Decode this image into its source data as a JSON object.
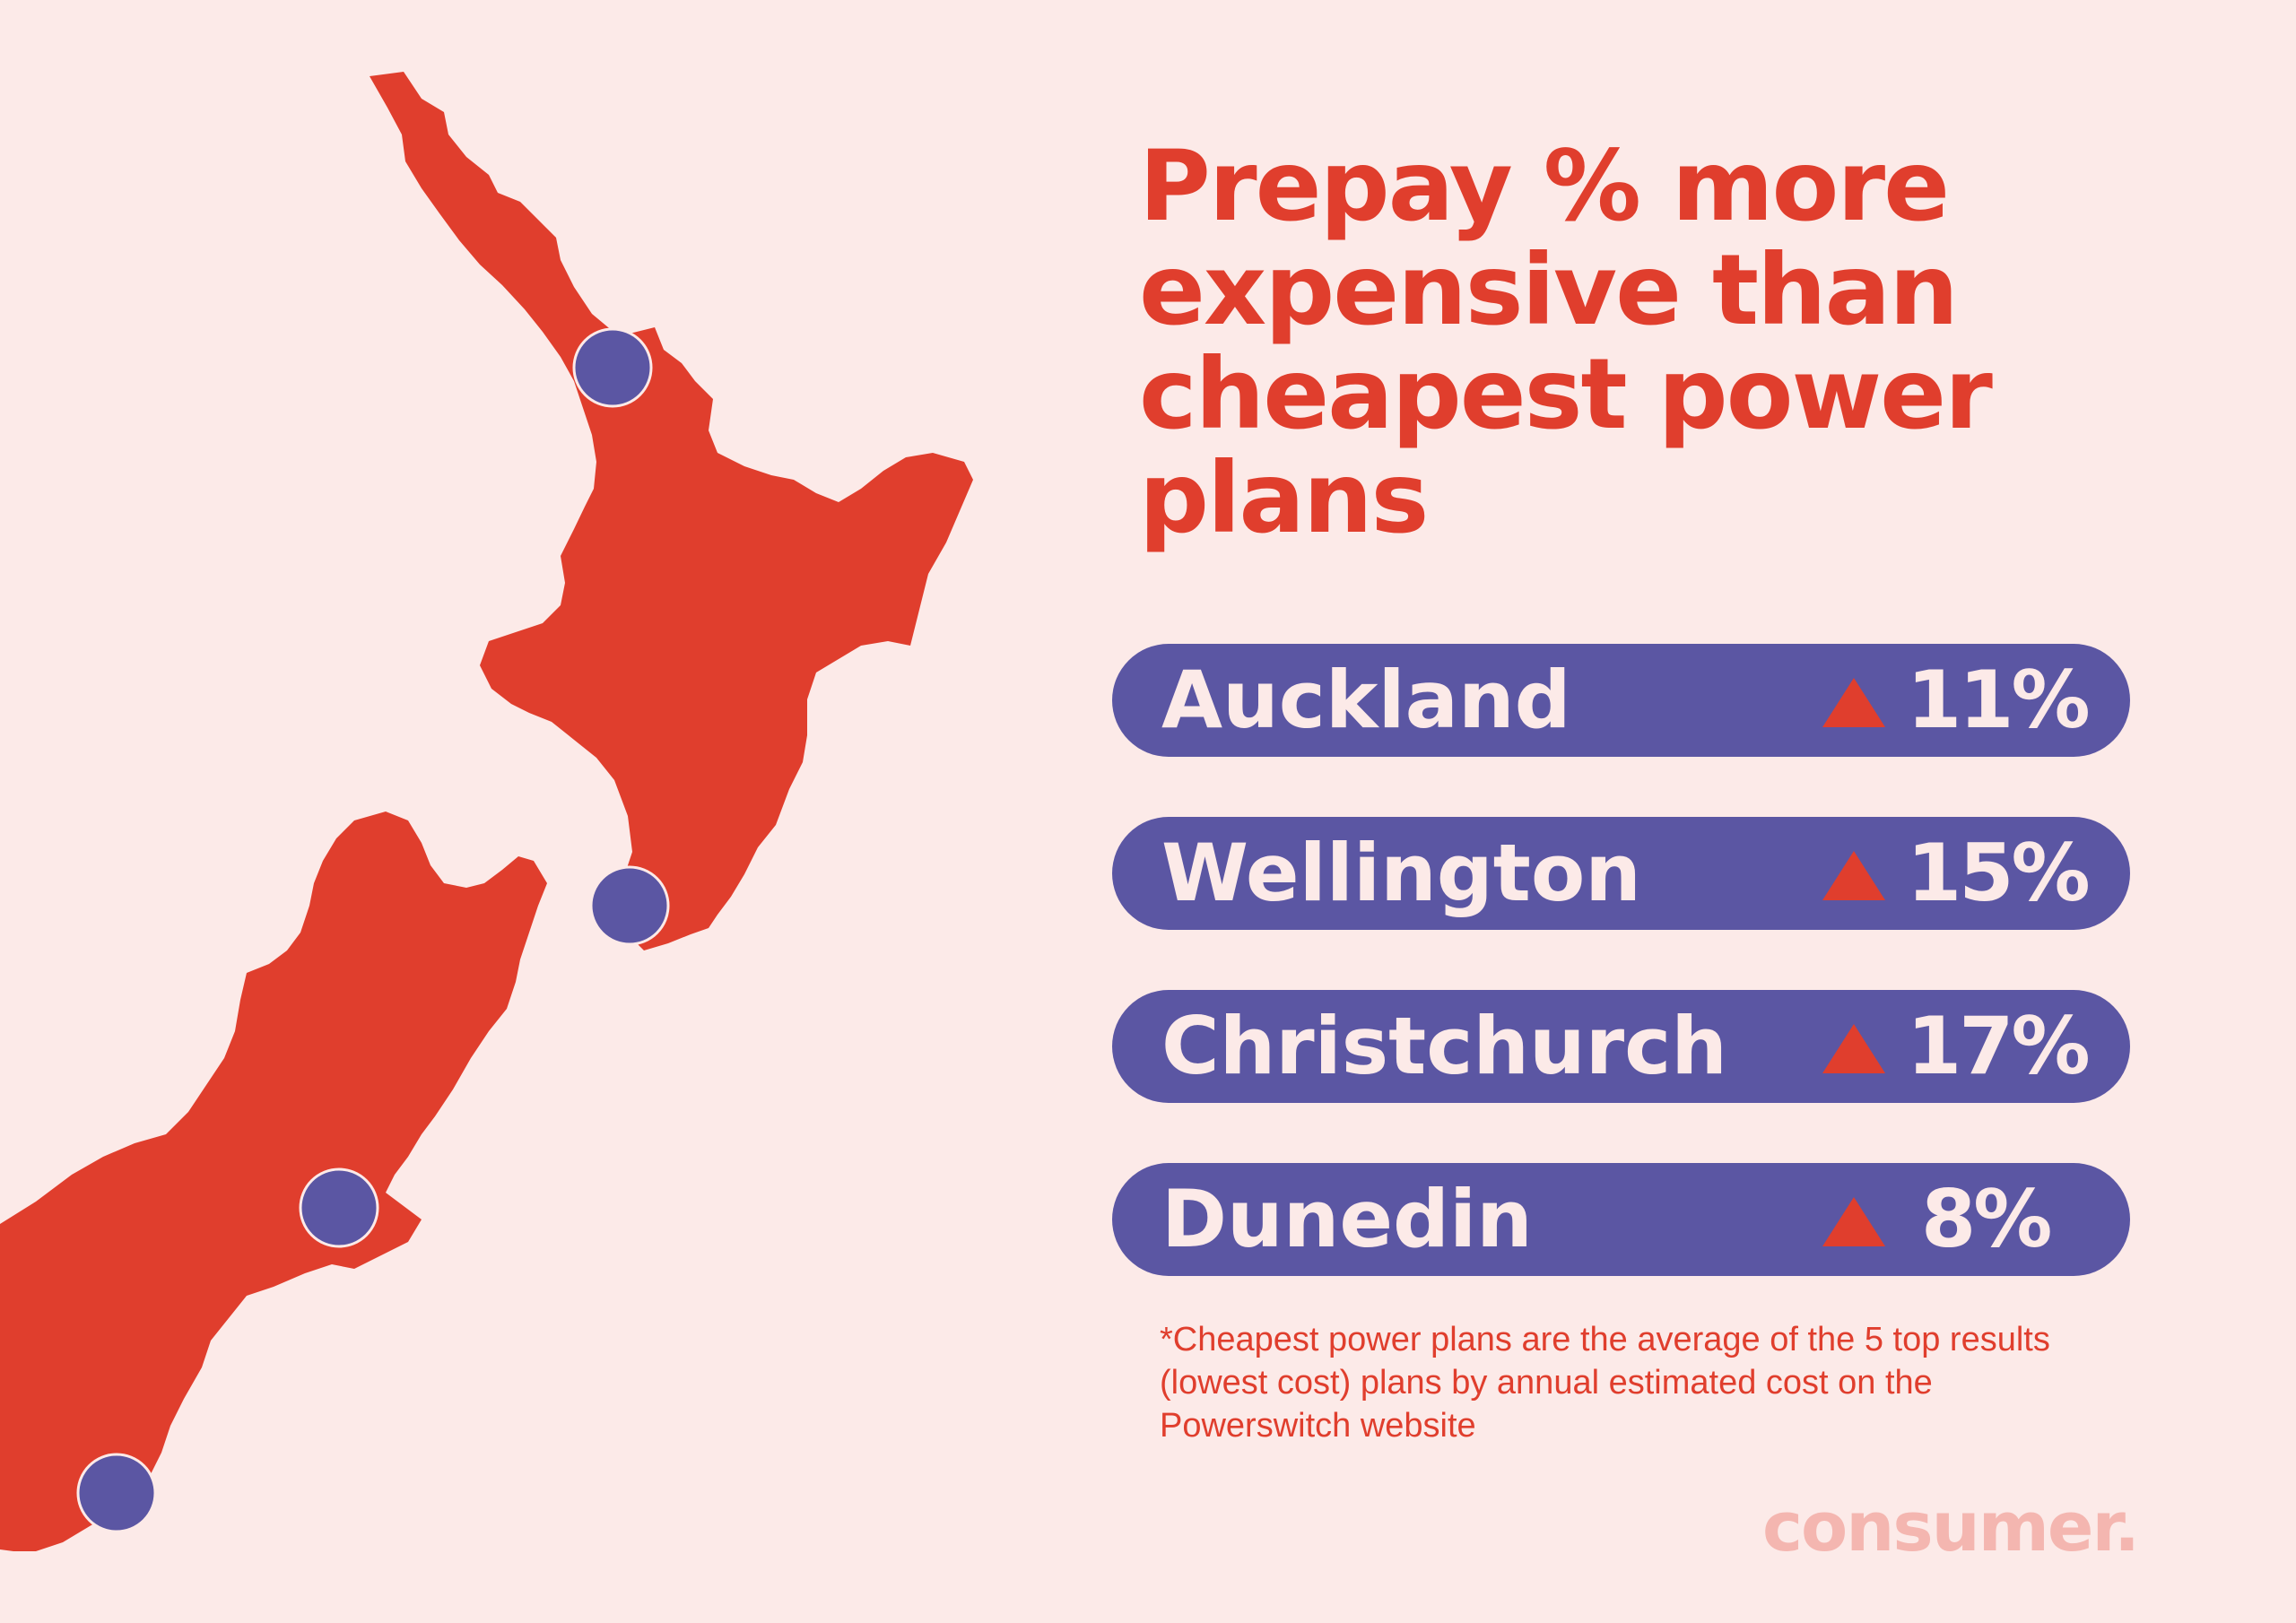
{
  "title": "Prepay % more expensive than cheapest power plans",
  "rows": [
    {
      "city": "Auckland",
      "value": "11%"
    },
    {
      "city": "Wellington",
      "value": "15%"
    },
    {
      "city": "Christchurch",
      "value": "17%"
    },
    {
      "city": "Dunedin",
      "value": "8%"
    }
  ],
  "footnote": "*Cheapest power plans are the average of the 5 top results (lowest cost) plans by annual estimated cost on the Powerswitch website",
  "brand": "consumer.",
  "colors": {
    "background": "#FCEAE8",
    "accent": "#E03E2D",
    "pill": "#5B56A3",
    "brand": "#F4B6B0"
  },
  "icons": {
    "increase": "up-triangle-icon",
    "city_marker": "circle-marker"
  }
}
